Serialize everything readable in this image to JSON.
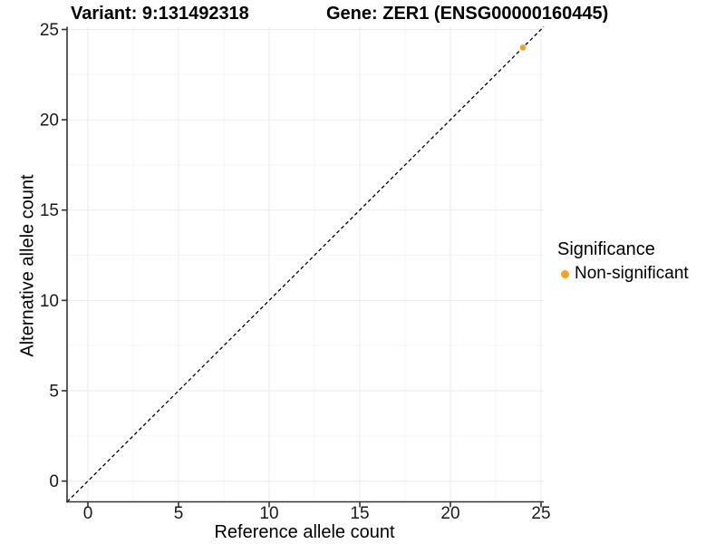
{
  "chart_data": {
    "type": "scatter",
    "titles": {
      "left": "Variant: 9:131492318",
      "right": "Gene: ZER1 (ENSG00000160445)"
    },
    "xlabel": "Reference allele count",
    "ylabel": "Alternative allele count",
    "xlim": [
      -1.15,
      25.15
    ],
    "ylim": [
      -1.15,
      25.15
    ],
    "xticks": [
      0,
      5,
      10,
      15,
      20,
      25
    ],
    "yticks": [
      0,
      5,
      10,
      15,
      20,
      25
    ],
    "minor_ticks_x": [
      2.5,
      7.5,
      12.5,
      17.5,
      22.5
    ],
    "minor_ticks_y": [
      2.5,
      7.5,
      12.5,
      17.5,
      22.5
    ],
    "grid": true,
    "reference_line": {
      "type": "identity",
      "style": "dashed",
      "color": "#000000",
      "x0": -1.15,
      "y0": -1.15,
      "x1": 25.15,
      "y1": 25.15
    },
    "series": [
      {
        "name": "Non-significant",
        "color": "#F9A11B",
        "marker": "circle",
        "points": [
          {
            "x": 24,
            "y": 24
          }
        ]
      }
    ],
    "legend": {
      "title": "Significance",
      "position": "right",
      "entries": [
        {
          "label": "Non-significant",
          "color": "#F9A11B"
        }
      ]
    },
    "colors": {
      "grid_major": "#EBEBEB",
      "grid_minor": "#F5F5F5",
      "axis": "#333333",
      "tick_text": "#1a1a1a",
      "background": "#ffffff"
    }
  }
}
